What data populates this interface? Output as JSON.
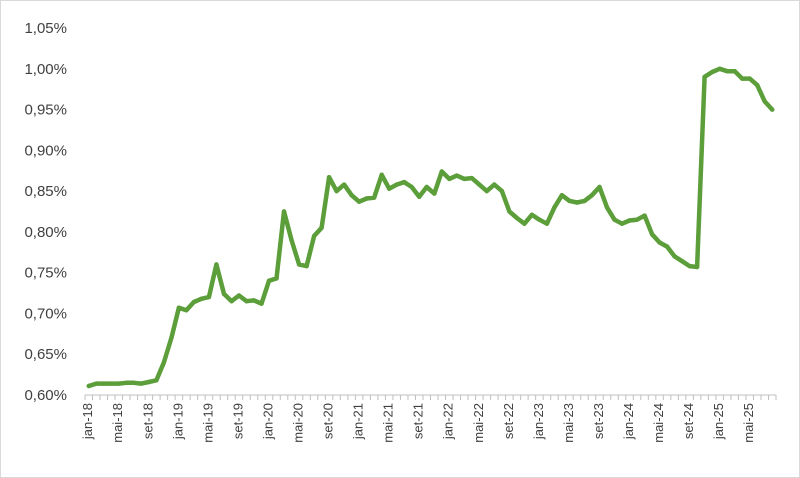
{
  "chart_data": {
    "type": "line",
    "title": "",
    "xlabel": "",
    "ylabel": "",
    "ylim": [
      0.6,
      1.05
    ],
    "yticks": [
      "0,60%",
      "0,65%",
      "0,70%",
      "0,75%",
      "0,80%",
      "0,85%",
      "0,90%",
      "0,95%",
      "1,00%",
      "1,05%"
    ],
    "ytick_values": [
      0.6,
      0.65,
      0.7,
      0.75,
      0.8,
      0.85,
      0.9,
      0.95,
      1.0,
      1.05
    ],
    "xtick_labels": [
      "jan-18",
      "mai-18",
      "set-18",
      "jan-19",
      "mai-19",
      "set-19",
      "jan-20",
      "mai-20",
      "set-20",
      "jan-21",
      "mai-21",
      "set-21",
      "jan-22",
      "mai-22",
      "set-22",
      "jan-23",
      "mai-23",
      "set-23",
      "jan-24",
      "mai-24",
      "set-24",
      "jan-25",
      "mai-25"
    ],
    "grid": false,
    "legend": "none",
    "line_color": "#5b9e3a",
    "series": [
      {
        "values": [
          0.611,
          0.614,
          0.614,
          0.614,
          0.614,
          0.615,
          0.615,
          0.614,
          0.616,
          0.618,
          0.64,
          0.67,
          0.707,
          0.704,
          0.714,
          0.718,
          0.72,
          0.76,
          0.724,
          0.715,
          0.722,
          0.715,
          0.716,
          0.712,
          0.74,
          0.743,
          0.825,
          0.79,
          0.76,
          0.758,
          0.795,
          0.805,
          0.867,
          0.85,
          0.858,
          0.845,
          0.837,
          0.841,
          0.842,
          0.87,
          0.853,
          0.858,
          0.861,
          0.855,
          0.843,
          0.855,
          0.847,
          0.874,
          0.865,
          0.869,
          0.865,
          0.866,
          0.858,
          0.85,
          0.858,
          0.85,
          0.825,
          0.817,
          0.81,
          0.821,
          0.815,
          0.81,
          0.83,
          0.845,
          0.838,
          0.836,
          0.838,
          0.845,
          0.855,
          0.83,
          0.815,
          0.81,
          0.814,
          0.815,
          0.82,
          0.797,
          0.787,
          0.782,
          0.77,
          0.764,
          0.758,
          0.757,
          0.99,
          0.996,
          1.0,
          0.997,
          0.997,
          0.988,
          0.988,
          0.98,
          0.96,
          0.95
        ]
      }
    ]
  }
}
